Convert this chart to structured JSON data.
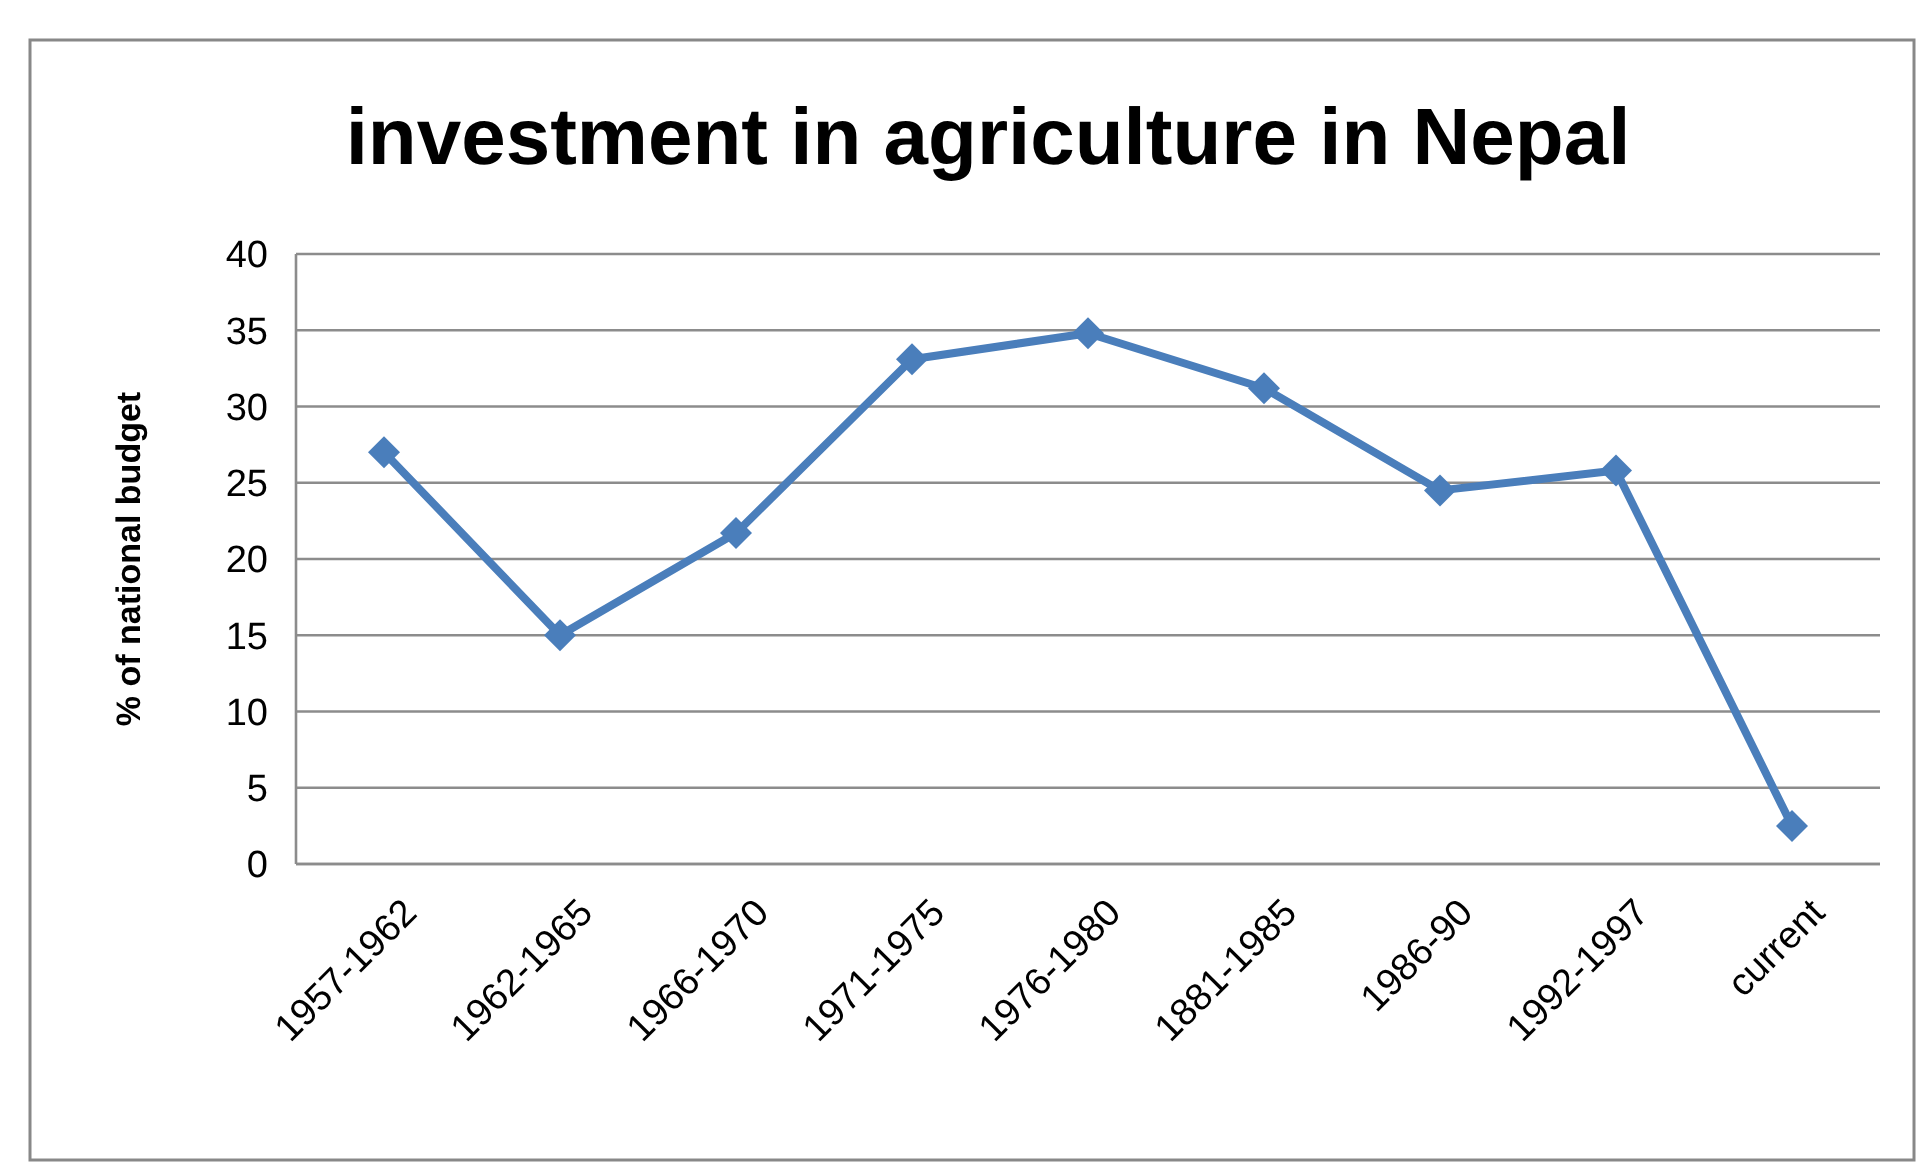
{
  "chart_data": {
    "type": "line",
    "title": "investment in agriculture in Nepal",
    "ylabel": "% of national budget",
    "categories": [
      "1957-1962",
      "1962-1965",
      "1966-1970",
      "1971-1975",
      "1976-1980",
      "1881-1985",
      "1986-90",
      "1992-1997",
      "current"
    ],
    "series": [
      {
        "color": "#4a7ebb",
        "values": [
          27,
          15,
          21.7,
          33.1,
          34.8,
          31.2,
          24.5,
          25.8,
          2.5
        ]
      }
    ],
    "ylim": [
      0,
      40
    ],
    "yticks": [
      0,
      5,
      10,
      15,
      20,
      25,
      30,
      35,
      40
    ],
    "grid": "y",
    "marker": "diamond",
    "line_style": "solid"
  }
}
